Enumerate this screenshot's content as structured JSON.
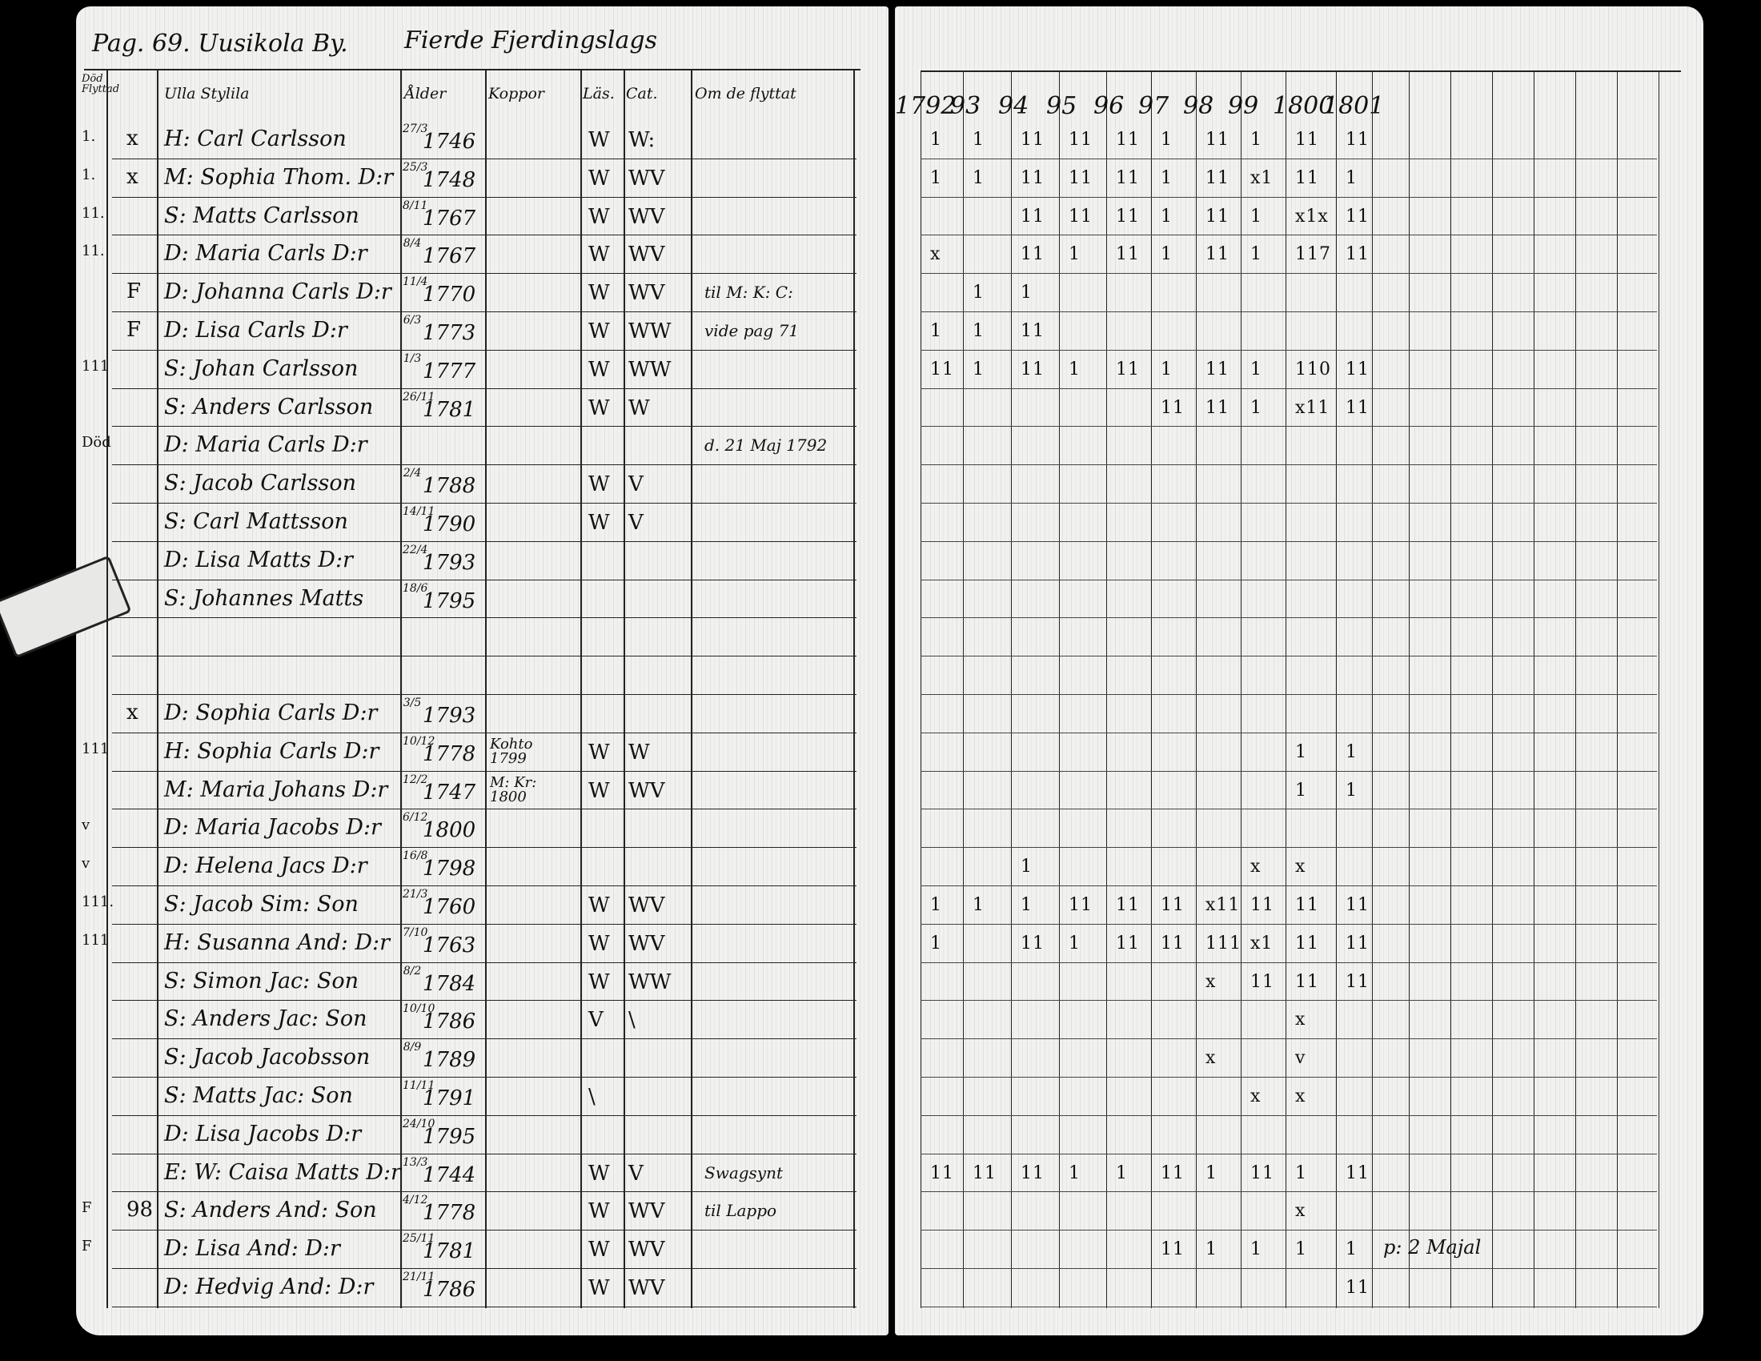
{
  "document": {
    "header": {
      "page_village": "Pag. 69. Uusikola By.",
      "district": "Fierde Fjerdingslags"
    },
    "left_columns": [
      "Död Flyttad",
      "Ulla Stylila",
      "Ålder",
      "Koppor",
      "Läs.",
      "Cat.",
      "Om de flyttat"
    ],
    "years": [
      "1792",
      "93",
      "94",
      "95",
      "96",
      "97",
      "98",
      "99",
      "1800",
      "1801"
    ],
    "rows": [
      {
        "margin": "1.",
        "status": "x",
        "name": "H: Carl Carlsson",
        "day": "27/3",
        "year": "1746",
        "k": "",
        "l": "W",
        "c": "W:",
        "note": "",
        "tally": [
          "1",
          "1",
          "11",
          "11",
          "11",
          "1",
          "11",
          "1",
          "11",
          "11"
        ]
      },
      {
        "margin": "1.",
        "status": "x",
        "name": "M: Sophia Thom. D:r",
        "day": "25/3",
        "year": "1748",
        "k": "",
        "l": "W",
        "c": "WV",
        "note": "",
        "tally": [
          "1",
          "1",
          "11",
          "11",
          "11",
          "1",
          "11",
          "x1",
          "11",
          "1"
        ]
      },
      {
        "margin": "11.",
        "status": "",
        "name": "S: Matts Carlsson",
        "day": "8/11",
        "year": "1767",
        "k": "",
        "l": "W",
        "c": "WV",
        "note": "",
        "tally": [
          "",
          "",
          "11",
          "11",
          "11",
          "1",
          "11",
          "1",
          "x1x",
          "11"
        ]
      },
      {
        "margin": "11.",
        "status": "",
        "name": "D: Maria Carls D:r",
        "day": "8/4",
        "year": "1767",
        "k": "",
        "l": "W",
        "c": "WV",
        "note": "",
        "tally": [
          "x",
          "",
          "11",
          "1",
          "11",
          "1",
          "11",
          "1",
          "117",
          "11"
        ]
      },
      {
        "margin": "",
        "status": "F",
        "name": "D: Johanna Carls D:r",
        "day": "11/4",
        "year": "1770",
        "k": "",
        "l": "W",
        "c": "WV",
        "note": "til M: K: C:",
        "tally": [
          "",
          "1",
          "1",
          "",
          "",
          "",
          "",
          "",
          "",
          ""
        ]
      },
      {
        "margin": "",
        "status": "F",
        "name": "D: Lisa Carls D:r",
        "day": "6/3",
        "year": "1773",
        "k": "",
        "l": "W",
        "c": "WW",
        "note": "vide pag 71",
        "tally": [
          "1",
          "1",
          "11",
          "",
          "",
          "",
          "",
          "",
          "",
          ""
        ]
      },
      {
        "margin": "111",
        "status": "",
        "name": "S: Johan Carlsson",
        "day": "1/3",
        "year": "1777",
        "k": "",
        "l": "W",
        "c": "WW",
        "note": "",
        "tally": [
          "11",
          "1",
          "11",
          "1",
          "11",
          "1",
          "11",
          "1",
          "110",
          "11"
        ]
      },
      {
        "margin": "",
        "status": "",
        "name": "S: Anders Carlsson",
        "day": "26/11",
        "year": "1781",
        "k": "",
        "l": "W",
        "c": "W",
        "note": "",
        "tally": [
          "",
          "",
          "",
          "",
          "",
          "11",
          "11",
          "1",
          "x11",
          "11"
        ]
      },
      {
        "margin": "Död",
        "status": "",
        "name": "D: Maria Carls D:r",
        "day": "",
        "year": "",
        "k": "",
        "l": "",
        "c": "",
        "note": "d. 21 Maj 1792",
        "tally": [
          "",
          "",
          "",
          "",
          "",
          "",
          "",
          "",
          "",
          ""
        ]
      },
      {
        "margin": "",
        "status": "",
        "name": "S: Jacob Carlsson",
        "day": "2/4",
        "year": "1788",
        "k": "",
        "l": "W",
        "c": "V",
        "note": "",
        "tally": [
          "",
          "",
          "",
          "",
          "",
          "",
          "",
          "",
          "",
          ""
        ]
      },
      {
        "margin": "",
        "status": "",
        "name": "S: Carl Mattsson",
        "day": "14/11",
        "year": "1790",
        "k": "",
        "l": "W",
        "c": "V",
        "note": "",
        "tally": [
          "",
          "",
          "",
          "",
          "",
          "",
          "",
          "",
          "",
          ""
        ]
      },
      {
        "margin": "",
        "status": "",
        "name": "D: Lisa Matts D:r",
        "day": "22/4",
        "year": "1793",
        "k": "",
        "l": "",
        "c": "",
        "note": "",
        "tally": [
          "",
          "",
          "",
          "",
          "",
          "",
          "",
          "",
          "",
          ""
        ]
      },
      {
        "margin": "",
        "status": "",
        "name": "S: Johannes Matts",
        "day": "18/6",
        "year": "1795",
        "k": "",
        "l": "",
        "c": "",
        "note": "",
        "tally": [
          "",
          "",
          "",
          "",
          "",
          "",
          "",
          "",
          "",
          ""
        ]
      },
      {
        "margin": "",
        "status": "",
        "name": "",
        "day": "",
        "year": "",
        "k": "",
        "l": "",
        "c": "",
        "note": "",
        "tally": [
          "",
          "",
          "",
          "",
          "",
          "",
          "",
          "",
          "",
          ""
        ]
      },
      {
        "margin": "",
        "status": "",
        "name": "",
        "day": "",
        "year": "",
        "k": "",
        "l": "",
        "c": "",
        "note": "",
        "tally": [
          "",
          "",
          "",
          "",
          "",
          "",
          "",
          "",
          "",
          ""
        ]
      },
      {
        "margin": "",
        "status": "x",
        "name": "D: Sophia Carls D:r",
        "day": "3/5",
        "year": "1793",
        "k": "",
        "l": "",
        "c": "",
        "note": "",
        "tally": [
          "",
          "",
          "",
          "",
          "",
          "",
          "",
          "",
          "",
          ""
        ]
      },
      {
        "margin": "111",
        "status": "",
        "name": "H: Sophia Carls D:r",
        "day": "10/12",
        "year": "1778",
        "k": "Kohto 1799",
        "l": "W",
        "c": "W",
        "note": "",
        "tally": [
          "",
          "",
          "",
          "",
          "",
          "",
          "",
          "",
          "1",
          "1"
        ]
      },
      {
        "margin": "",
        "status": "",
        "name": "M: Maria Johans D:r",
        "day": "12/2",
        "year": "1747",
        "k": "M: Kr: 1800",
        "l": "W",
        "c": "WV",
        "note": "",
        "tally": [
          "",
          "",
          "",
          "",
          "",
          "",
          "",
          "",
          "1",
          "1"
        ]
      },
      {
        "margin": "v",
        "status": "",
        "name": "D: Maria Jacobs D:r",
        "day": "6/12",
        "year": "1800",
        "k": "",
        "l": "",
        "c": "",
        "note": "",
        "tally": [
          "",
          "",
          "",
          "",
          "",
          "",
          "",
          "",
          "",
          ""
        ]
      },
      {
        "margin": "v",
        "status": "",
        "name": "D: Helena Jacs D:r",
        "day": "16/8",
        "year": "1798",
        "k": "",
        "l": "",
        "c": "",
        "note": "",
        "tally": [
          "",
          "",
          "1",
          "",
          "",
          "",
          "",
          "x",
          "x",
          ""
        ]
      },
      {
        "margin": "111.",
        "status": "",
        "name": "S: Jacob Sim: Son",
        "day": "21/3",
        "year": "1760",
        "k": "",
        "l": "W",
        "c": "WV",
        "note": "",
        "tally": [
          "1",
          "1",
          "1",
          "11",
          "11",
          "11",
          "x11",
          "11",
          "11",
          "11"
        ]
      },
      {
        "margin": "111",
        "status": "",
        "name": "H: Susanna And: D:r",
        "day": "7/10",
        "year": "1763",
        "k": "",
        "l": "W",
        "c": "WV",
        "note": "",
        "tally": [
          "1",
          "",
          "11",
          "1",
          "11",
          "11",
          "111",
          "x1",
          "11",
          "11"
        ]
      },
      {
        "margin": "",
        "status": "",
        "name": "S: Simon Jac: Son",
        "day": "8/2",
        "year": "1784",
        "k": "",
        "l": "W",
        "c": "WW",
        "note": "",
        "tally": [
          "",
          "",
          "",
          "",
          "",
          "",
          "x",
          "11",
          "11",
          "11"
        ]
      },
      {
        "margin": "",
        "status": "",
        "name": "S: Anders Jac: Son",
        "day": "10/10",
        "year": "1786",
        "k": "",
        "l": "V",
        "c": "\\",
        "note": "",
        "tally": [
          "",
          "",
          "",
          "",
          "",
          "",
          "",
          "",
          "x",
          ""
        ]
      },
      {
        "margin": "",
        "status": "",
        "name": "S: Jacob Jacobsson",
        "day": "8/9",
        "year": "1789",
        "k": "",
        "l": "",
        "c": "",
        "note": "",
        "tally": [
          "",
          "",
          "",
          "",
          "",
          "",
          "x",
          "",
          "v",
          ""
        ]
      },
      {
        "margin": "",
        "status": "",
        "name": "S: Matts Jac: Son",
        "day": "11/11",
        "year": "1791",
        "k": "",
        "l": "\\",
        "c": "",
        "note": "",
        "tally": [
          "",
          "",
          "",
          "",
          "",
          "",
          "",
          "x",
          "x",
          ""
        ]
      },
      {
        "margin": "",
        "status": "",
        "name": "D: Lisa Jacobs D:r",
        "day": "24/10",
        "year": "1795",
        "k": "",
        "l": "",
        "c": "",
        "note": "",
        "tally": [
          "",
          "",
          "",
          "",
          "",
          "",
          "",
          "",
          "",
          ""
        ]
      },
      {
        "margin": "",
        "status": "",
        "name": "E: W: Caisa Matts D:r",
        "day": "13/3",
        "year": "1744",
        "k": "",
        "l": "W",
        "c": "V",
        "note": "Swagsynt",
        "tally": [
          "11",
          "11",
          "11",
          "1",
          "1",
          "11",
          "1",
          "11",
          "1",
          "11"
        ]
      },
      {
        "margin": "F",
        "status": "98",
        "name": "S: Anders And: Son",
        "day": "4/12",
        "year": "1778",
        "k": "",
        "l": "W",
        "c": "WV",
        "note": "til Lappo",
        "tally": [
          "",
          "",
          "",
          "",
          "",
          "",
          "",
          "",
          "x",
          ""
        ]
      },
      {
        "margin": "F",
        "status": "",
        "name": "D: Lisa And: D:r",
        "day": "25/11",
        "year": "1781",
        "k": "",
        "l": "W",
        "c": "WV",
        "note": "",
        "tally": [
          "",
          "",
          "",
          "",
          "",
          "11",
          "1",
          "1",
          "1",
          "1"
        ]
      },
      {
        "margin": "",
        "status": "",
        "name": "D: Hedvig And: D:r",
        "day": "21/11",
        "year": "1786",
        "k": "",
        "l": "W",
        "c": "WV",
        "note": "",
        "tally": [
          "",
          "",
          "",
          "",
          "",
          "",
          "",
          "",
          "",
          "11"
        ]
      }
    ],
    "right_margin_note": "p: 2 Majal"
  }
}
